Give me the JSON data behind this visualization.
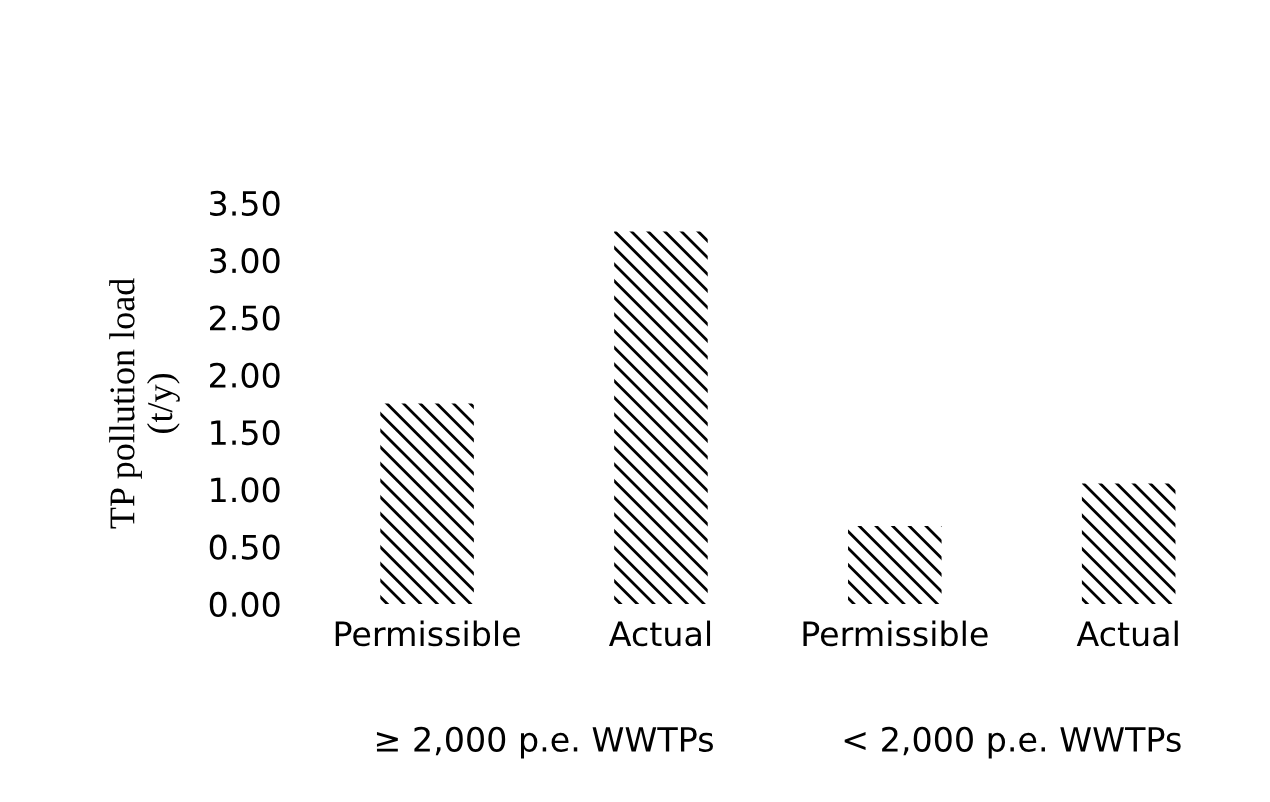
{
  "chart_data": {
    "type": "bar",
    "ylabel": "TP pollution load\n(t/y)",
    "categories": [
      "Permissible",
      "Actual",
      "Permissible",
      "Actual"
    ],
    "values": [
      1.75,
      3.25,
      0.68,
      1.05
    ],
    "color": "#000000",
    "annotations": [
      "≥ 2,000 p.e. WWTPs",
      "< 2,000 p.e. WWTPs"
    ],
    "ylim": [
      0,
      3.5
    ],
    "yticks": [
      {
        "value": 0,
        "label": "0.00"
      },
      {
        "value": 0.5,
        "label": "0.50"
      },
      {
        "value": 1,
        "label": "1.00"
      },
      {
        "value": 1.5,
        "label": "1.50"
      },
      {
        "value": 2,
        "label": "2.00"
      },
      {
        "value": 2.5,
        "label": "2.50"
      },
      {
        "value": 3,
        "label": "3.00"
      },
      {
        "value": 3.5,
        "label": "3.50"
      }
    ],
    "grid": false
  }
}
